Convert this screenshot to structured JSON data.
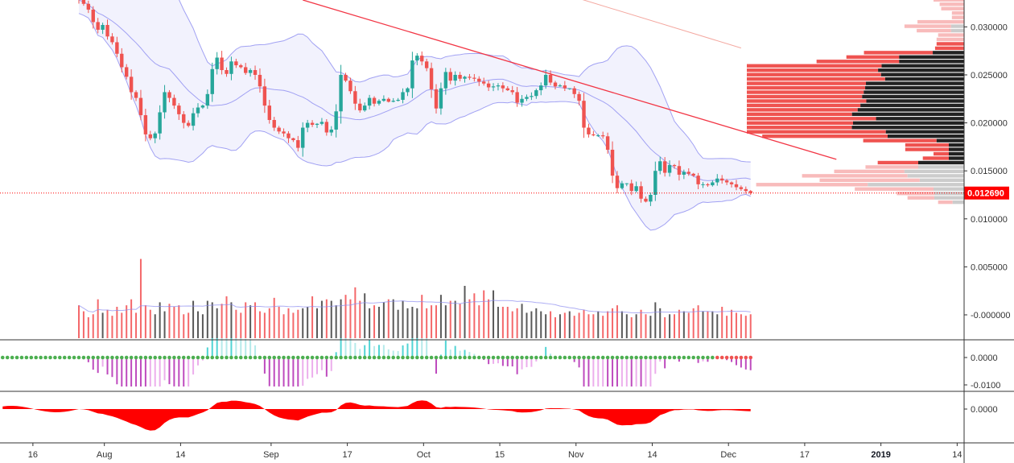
{
  "chart_data": {
    "type": "candlestick",
    "title": "",
    "colors": {
      "up": "#26a69a",
      "down": "#ef5350",
      "trendline": "#f23645",
      "bollinger": "#8c8cf0",
      "bollinger_fill": "#eeeefc",
      "sma_long": "#f4a8a0",
      "last_price": "#ff0000",
      "volume_up": "#595959",
      "volume_down": "#f4686a",
      "squeeze_on": "#ef5350",
      "squeeze_off": "#4caf50",
      "macd_area": "#ff0000"
    },
    "price_axis": {
      "ticks": [
        "0.030000",
        "0.025000",
        "0.020000",
        "0.015000",
        "0.010000",
        "0.005000",
        "-0.000000"
      ],
      "tick_values": [
        0.03,
        0.025,
        0.02,
        0.015,
        0.01,
        0.005,
        0.0
      ],
      "range": [
        -0.0026,
        0.0328
      ]
    },
    "last_price": {
      "value": 0.01269,
      "label": "0.012690"
    },
    "time_axis": [
      {
        "label": "16",
        "bold": false
      },
      {
        "label": "Aug",
        "bold": false
      },
      {
        "label": "14",
        "bold": false
      },
      {
        "label": "Sep",
        "bold": false
      },
      {
        "label": "17",
        "bold": false
      },
      {
        "label": "Oct",
        "bold": false
      },
      {
        "label": "15",
        "bold": false
      },
      {
        "label": "Nov",
        "bold": false
      },
      {
        "label": "14",
        "bold": false
      },
      {
        "label": "Dec",
        "bold": false
      },
      {
        "label": "17",
        "bold": false
      },
      {
        "label": "2019",
        "bold": true
      },
      {
        "label": "14",
        "bold": false
      }
    ],
    "time_axis_bar_index": [
      -11,
      4,
      20,
      39,
      55,
      71,
      87,
      103,
      119,
      135,
      151,
      167,
      183
    ],
    "close_series": [
      0.0328,
      0.0324,
      0.0318,
      0.0305,
      0.0297,
      0.0302,
      0.029,
      0.0284,
      0.0272,
      0.0258,
      0.0248,
      0.0232,
      0.0226,
      0.0208,
      0.0188,
      0.0184,
      0.0189,
      0.0211,
      0.0232,
      0.0226,
      0.0218,
      0.0209,
      0.02,
      0.0197,
      0.021,
      0.0216,
      0.0218,
      0.023,
      0.0256,
      0.0268,
      0.0255,
      0.0251,
      0.0264,
      0.026,
      0.0258,
      0.0252,
      0.0255,
      0.025,
      0.0238,
      0.0218,
      0.0203,
      0.0195,
      0.0191,
      0.0189,
      0.0184,
      0.0182,
      0.0174,
      0.0195,
      0.02,
      0.0198,
      0.0199,
      0.0201,
      0.019,
      0.0193,
      0.0212,
      0.025,
      0.0244,
      0.0233,
      0.022,
      0.0213,
      0.0218,
      0.0226,
      0.022,
      0.0223,
      0.0225,
      0.0222,
      0.0223,
      0.0224,
      0.0232,
      0.0236,
      0.0265,
      0.027,
      0.0264,
      0.0257,
      0.0235,
      0.0215,
      0.0236,
      0.0253,
      0.0244,
      0.025,
      0.0246,
      0.0248,
      0.0247,
      0.0246,
      0.0243,
      0.0241,
      0.0237,
      0.0238,
      0.0239,
      0.0236,
      0.0234,
      0.0232,
      0.0221,
      0.0225,
      0.0227,
      0.0228,
      0.0234,
      0.0239,
      0.025,
      0.0242,
      0.0238,
      0.0239,
      0.0236,
      0.0236,
      0.023,
      0.0223,
      0.0195,
      0.0188,
      0.0187,
      0.0187,
      0.0186,
      0.0172,
      0.0145,
      0.0132,
      0.0137,
      0.0137,
      0.0129,
      0.0134,
      0.0121,
      0.0118,
      0.0125,
      0.015,
      0.016,
      0.0148,
      0.0156,
      0.0155,
      0.0146,
      0.0149,
      0.0147,
      0.0145,
      0.0136,
      0.0136,
      0.0135,
      0.0138,
      0.0142,
      0.014,
      0.0138,
      0.0136,
      0.0133,
      0.0131,
      0.0129,
      0.0127
    ],
    "volume_scale_max": 0.0056,
    "volume_series": [
      0.0022,
      0.0018,
      0.0014,
      0.0016,
      0.0026,
      0.0017,
      0.0019,
      0.0015,
      0.0021,
      0.0017,
      0.0022,
      0.0026,
      0.0017,
      0.0053,
      0.0022,
      0.0019,
      0.0016,
      0.0024,
      0.0018,
      0.0023,
      0.0021,
      0.0022,
      0.0016,
      0.0017,
      0.0025,
      0.0018,
      0.0016,
      0.0025,
      0.0024,
      0.002,
      0.0023,
      0.0028,
      0.0024,
      0.0019,
      0.0017,
      0.0024,
      0.0022,
      0.0024,
      0.0018,
      0.0017,
      0.002,
      0.0027,
      0.0021,
      0.0016,
      0.002,
      0.0017,
      0.0019,
      0.002,
      0.0021,
      0.0028,
      0.002,
      0.0025,
      0.0026,
      0.0025,
      0.0022,
      0.0026,
      0.0029,
      0.0026,
      0.0034,
      0.0025,
      0.003,
      0.002,
      0.0022,
      0.0021,
      0.0024,
      0.0026,
      0.0026,
      0.0019,
      0.0025,
      0.002,
      0.0021,
      0.002,
      0.0029,
      0.002,
      0.0022,
      0.0022,
      0.0029,
      0.0022,
      0.0025,
      0.0025,
      0.0023,
      0.0035,
      0.0026,
      0.003,
      0.0022,
      0.0032,
      0.0026,
      0.0032,
      0.0021,
      0.0021,
      0.0021,
      0.0018,
      0.002,
      0.0023,
      0.0017,
      0.0018,
      0.002,
      0.0018,
      0.0016,
      0.0018,
      0.0014,
      0.0016,
      0.0017,
      0.0018,
      0.0015,
      0.0017,
      0.0019,
      0.0016,
      0.0016,
      0.0018,
      0.0015,
      0.0018,
      0.002,
      0.0022,
      0.0018,
      0.0016,
      0.0014,
      0.0016,
      0.0019,
      0.0016,
      0.0015,
      0.0024,
      0.002,
      0.0014,
      0.0016,
      0.0016,
      0.0019,
      0.0018,
      0.0017,
      0.002,
      0.0022,
      0.0018,
      0.0018,
      0.0018,
      0.0016,
      0.0021,
      0.0015,
      0.0019,
      0.0017,
      0.0016,
      0.0015,
      0.0016
    ],
    "squeeze_momentum_axis": {
      "ticks": [
        "0.0000",
        "-0.0100"
      ],
      "tick_values": [
        0.0,
        -0.01
      ]
    },
    "macd_axis": {
      "ticks": [
        "0.0000"
      ],
      "tick_values": [
        0.0
      ]
    },
    "volume_profile_bins": 48
  }
}
